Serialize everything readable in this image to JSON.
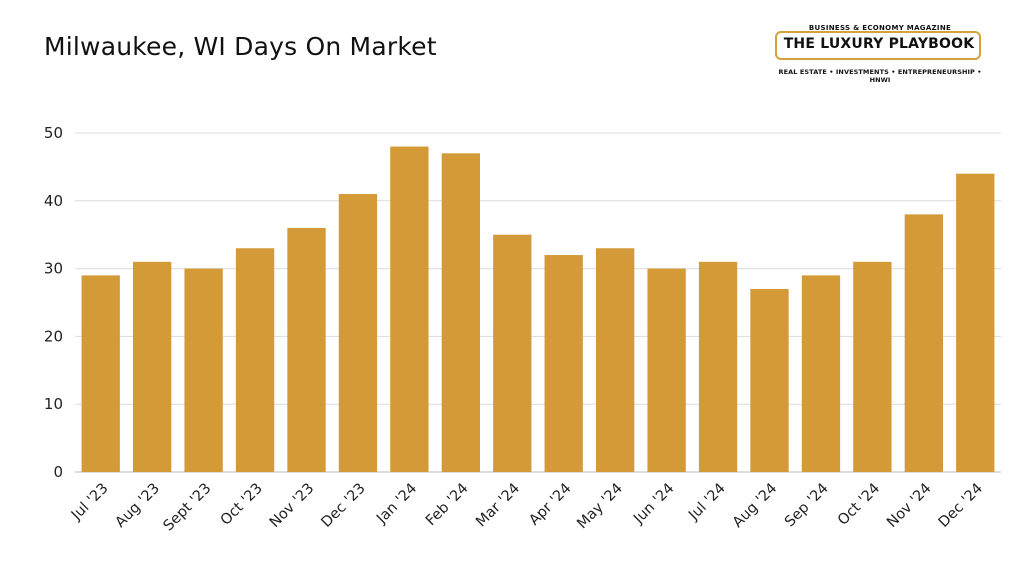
{
  "title": "Milwaukee, WI Days On Market",
  "logo": {
    "top_text": "BUSINESS & ECONOMY MAGAZINE",
    "main_text": "THE LUXURY PLAYBOOK",
    "bottom_text": "REAL ESTATE • INVESTMENTS • ENTREPRENEURSHIP • HNWI"
  },
  "colors": {
    "bar": "#d49a37",
    "grid": "#dcdcdc",
    "text": "#222222"
  },
  "chart_data": {
    "type": "bar",
    "title": "Milwaukee, WI Days On Market",
    "xlabel": "",
    "ylabel": "",
    "categories": [
      "Jul '23",
      "Aug '23",
      "Sept '23",
      "Oct '23",
      "Nov '23",
      "Dec '23",
      "Jan '24",
      "Feb '24",
      "Mar '24",
      "Apr '24",
      "May '24",
      "Jun '24",
      "Jul '24",
      "Aug '24",
      "Sep '24",
      "Oct '24",
      "Nov '24",
      "Dec '24"
    ],
    "values": [
      29,
      31,
      30,
      33,
      36,
      41,
      48,
      47,
      35,
      32,
      33,
      30,
      31,
      27,
      29,
      31,
      38,
      44
    ],
    "ylim": [
      0,
      50
    ],
    "yticks": [
      0,
      10,
      20,
      30,
      40,
      50
    ],
    "grid": true,
    "legend": "none"
  }
}
